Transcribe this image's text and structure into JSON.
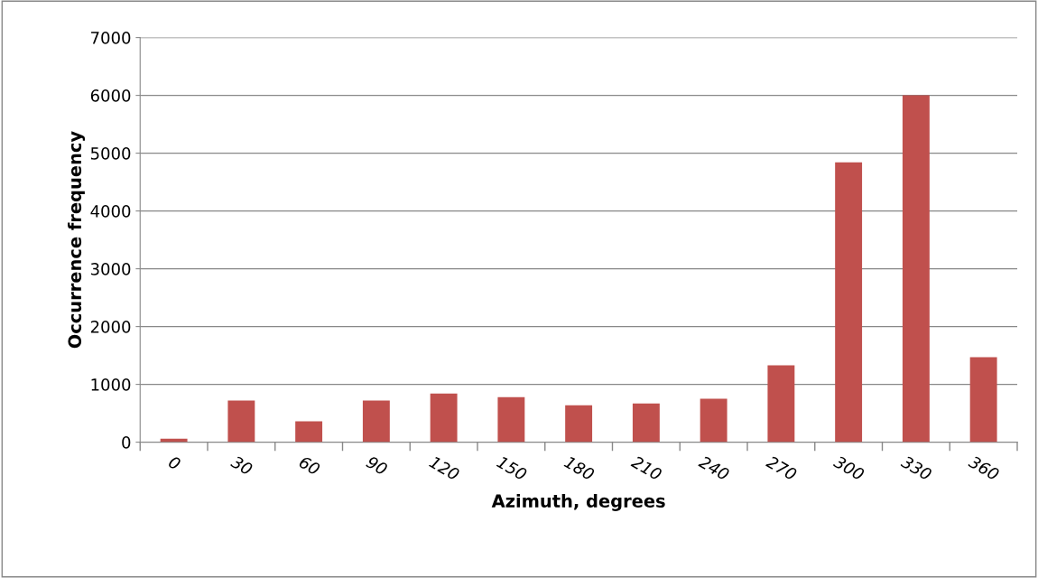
{
  "chart_data": {
    "type": "bar",
    "xlabel": "Azimuth, degrees",
    "ylabel": "Occurrence frequency",
    "categories": [
      "0",
      "30",
      "60",
      "90",
      "120",
      "150",
      "180",
      "210",
      "240",
      "270",
      "300",
      "330",
      "360"
    ],
    "values": [
      60,
      720,
      360,
      720,
      840,
      780,
      640,
      670,
      750,
      1330,
      4840,
      6000,
      1470
    ],
    "color": "#c0504d",
    "ylim": [
      0,
      7000
    ],
    "yticks": [
      0,
      1000,
      2000,
      3000,
      4000,
      5000,
      6000,
      7000
    ],
    "grid": "y"
  }
}
